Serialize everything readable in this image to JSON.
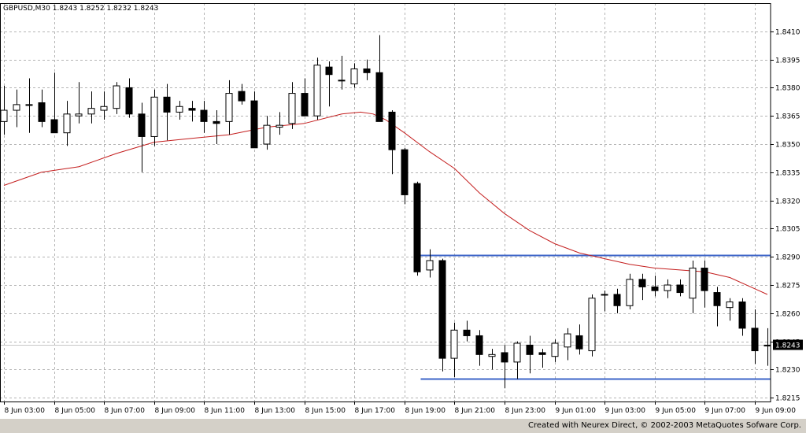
{
  "chart_data": {
    "type": "candlestick",
    "title": "GBPUSD,M30  1.8243 1.8252 1.8232 1.8243",
    "ylim": [
      1.8213,
      1.8425
    ],
    "y_ticks": [
      "1.8410",
      "1.8395",
      "1.8380",
      "1.8365",
      "1.8350",
      "1.8335",
      "1.8320",
      "1.8305",
      "1.8290",
      "1.8275",
      "1.8260",
      "1.8245",
      "1.8230",
      "1.8215"
    ],
    "x_labels": [
      "8 Jun 03:00",
      "8 Jun 05:00",
      "8 Jun 07:00",
      "8 Jun 09:00",
      "8 Jun 11:00",
      "8 Jun 13:00",
      "8 Jun 15:00",
      "8 Jun 17:00",
      "8 Jun 19:00",
      "8 Jun 21:00",
      "8 Jun 23:00",
      "9 Jun 01:00",
      "9 Jun 03:00",
      "9 Jun 05:00",
      "9 Jun 07:00",
      "9 Jun 09:00"
    ],
    "current_price": "1.8243",
    "levels": [
      1.8291,
      1.8225
    ],
    "candles": [
      {
        "o": 1.8362,
        "h": 1.8381,
        "l": 1.8355,
        "c": 1.8368
      },
      {
        "o": 1.8368,
        "h": 1.8379,
        "l": 1.8359,
        "c": 1.8371
      },
      {
        "o": 1.8371,
        "h": 1.8385,
        "l": 1.8356,
        "c": 1.8371
      },
      {
        "o": 1.8372,
        "h": 1.8379,
        "l": 1.8359,
        "c": 1.8362
      },
      {
        "o": 1.8363,
        "h": 1.8388,
        "l": 1.8356,
        "c": 1.8356
      },
      {
        "o": 1.8356,
        "h": 1.8373,
        "l": 1.8349,
        "c": 1.8366
      },
      {
        "o": 1.8365,
        "h": 1.8383,
        "l": 1.8361,
        "c": 1.8366
      },
      {
        "o": 1.8366,
        "h": 1.8378,
        "l": 1.8361,
        "c": 1.8369
      },
      {
        "o": 1.8368,
        "h": 1.8378,
        "l": 1.8363,
        "c": 1.837
      },
      {
        "o": 1.8369,
        "h": 1.8383,
        "l": 1.8366,
        "c": 1.8381
      },
      {
        "o": 1.838,
        "h": 1.8385,
        "l": 1.8364,
        "c": 1.8366
      },
      {
        "o": 1.8366,
        "h": 1.8372,
        "l": 1.8335,
        "c": 1.8354
      },
      {
        "o": 1.8354,
        "h": 1.8379,
        "l": 1.8349,
        "c": 1.8375
      },
      {
        "o": 1.8375,
        "h": 1.8382,
        "l": 1.8352,
        "c": 1.8367
      },
      {
        "o": 1.8367,
        "h": 1.8373,
        "l": 1.8363,
        "c": 1.837
      },
      {
        "o": 1.8369,
        "h": 1.8373,
        "l": 1.8362,
        "c": 1.8368
      },
      {
        "o": 1.8368,
        "h": 1.8373,
        "l": 1.8356,
        "c": 1.8362
      },
      {
        "o": 1.8362,
        "h": 1.8368,
        "l": 1.835,
        "c": 1.8361
      },
      {
        "o": 1.8362,
        "h": 1.8384,
        "l": 1.8355,
        "c": 1.8377
      },
      {
        "o": 1.8378,
        "h": 1.8382,
        "l": 1.8371,
        "c": 1.8373
      },
      {
        "o": 1.8373,
        "h": 1.8378,
        "l": 1.8348,
        "c": 1.8348
      },
      {
        "o": 1.835,
        "h": 1.8365,
        "l": 1.8347,
        "c": 1.836
      },
      {
        "o": 1.8359,
        "h": 1.8367,
        "l": 1.8355,
        "c": 1.836
      },
      {
        "o": 1.8361,
        "h": 1.8383,
        "l": 1.8358,
        "c": 1.8377
      },
      {
        "o": 1.8377,
        "h": 1.8385,
        "l": 1.8366,
        "c": 1.8365
      },
      {
        "o": 1.8365,
        "h": 1.8396,
        "l": 1.8363,
        "c": 1.8392
      },
      {
        "o": 1.8391,
        "h": 1.8394,
        "l": 1.837,
        "c": 1.8387
      },
      {
        "o": 1.8384,
        "h": 1.8397,
        "l": 1.8379,
        "c": 1.8384
      },
      {
        "o": 1.8382,
        "h": 1.8393,
        "l": 1.838,
        "c": 1.839
      },
      {
        "o": 1.839,
        "h": 1.8395,
        "l": 1.8384,
        "c": 1.8388
      },
      {
        "o": 1.8388,
        "h": 1.8408,
        "l": 1.8362,
        "c": 1.8362
      },
      {
        "o": 1.8367,
        "h": 1.8368,
        "l": 1.8334,
        "c": 1.8347
      },
      {
        "o": 1.8347,
        "h": 1.8348,
        "l": 1.8318,
        "c": 1.8323
      },
      {
        "o": 1.8329,
        "h": 1.833,
        "l": 1.828,
        "c": 1.8282
      },
      {
        "o": 1.8283,
        "h": 1.8294,
        "l": 1.8279,
        "c": 1.8288
      },
      {
        "o": 1.8288,
        "h": 1.8289,
        "l": 1.8229,
        "c": 1.8236
      },
      {
        "o": 1.8236,
        "h": 1.8255,
        "l": 1.8226,
        "c": 1.8251
      },
      {
        "o": 1.8251,
        "h": 1.8256,
        "l": 1.8245,
        "c": 1.8248
      },
      {
        "o": 1.8248,
        "h": 1.8251,
        "l": 1.8232,
        "c": 1.8238
      },
      {
        "o": 1.8237,
        "h": 1.8241,
        "l": 1.823,
        "c": 1.8238
      },
      {
        "o": 1.8239,
        "h": 1.8243,
        "l": 1.822,
        "c": 1.8234
      },
      {
        "o": 1.8234,
        "h": 1.8245,
        "l": 1.8225,
        "c": 1.8244
      },
      {
        "o": 1.8243,
        "h": 1.8248,
        "l": 1.8228,
        "c": 1.8238
      },
      {
        "o": 1.8239,
        "h": 1.8241,
        "l": 1.8231,
        "c": 1.8238
      },
      {
        "o": 1.8237,
        "h": 1.8246,
        "l": 1.8234,
        "c": 1.8244
      },
      {
        "o": 1.8242,
        "h": 1.8252,
        "l": 1.8235,
        "c": 1.8249
      },
      {
        "o": 1.8248,
        "h": 1.8254,
        "l": 1.8238,
        "c": 1.8241
      },
      {
        "o": 1.824,
        "h": 1.827,
        "l": 1.8237,
        "c": 1.8268
      },
      {
        "o": 1.827,
        "h": 1.8272,
        "l": 1.8261,
        "c": 1.827
      },
      {
        "o": 1.827,
        "h": 1.8273,
        "l": 1.826,
        "c": 1.8264
      },
      {
        "o": 1.8264,
        "h": 1.8281,
        "l": 1.8262,
        "c": 1.8278
      },
      {
        "o": 1.8278,
        "h": 1.8281,
        "l": 1.8267,
        "c": 1.8274
      },
      {
        "o": 1.8274,
        "h": 1.828,
        "l": 1.8269,
        "c": 1.8272
      },
      {
        "o": 1.8272,
        "h": 1.8278,
        "l": 1.8268,
        "c": 1.8275
      },
      {
        "o": 1.8275,
        "h": 1.8278,
        "l": 1.8269,
        "c": 1.8271
      },
      {
        "o": 1.8268,
        "h": 1.8288,
        "l": 1.826,
        "c": 1.8284
      },
      {
        "o": 1.8284,
        "h": 1.8288,
        "l": 1.8263,
        "c": 1.8272
      },
      {
        "o": 1.8271,
        "h": 1.8274,
        "l": 1.8253,
        "c": 1.8264
      },
      {
        "o": 1.8263,
        "h": 1.8268,
        "l": 1.8256,
        "c": 1.8266
      },
      {
        "o": 1.8266,
        "h": 1.8268,
        "l": 1.8248,
        "c": 1.8252
      },
      {
        "o": 1.8252,
        "h": 1.8262,
        "l": 1.8233,
        "c": 1.824
      },
      {
        "o": 1.8243,
        "h": 1.8252,
        "l": 1.8232,
        "c": 1.8243
      }
    ],
    "ma_points": [
      [
        0,
        1.8328
      ],
      [
        3,
        1.8335
      ],
      [
        6,
        1.8338
      ],
      [
        9,
        1.8345
      ],
      [
        12,
        1.8351
      ],
      [
        15,
        1.8353
      ],
      [
        18,
        1.8355
      ],
      [
        21,
        1.8359
      ],
      [
        24,
        1.8361
      ],
      [
        27,
        1.8366
      ],
      [
        28.5,
        1.8367
      ],
      [
        29.5,
        1.8366
      ],
      [
        30.5,
        1.8363
      ],
      [
        32,
        1.8356
      ],
      [
        34,
        1.8346
      ],
      [
        36,
        1.8337
      ],
      [
        38,
        1.8324
      ],
      [
        40,
        1.8313
      ],
      [
        42,
        1.8304
      ],
      [
        44,
        1.8297
      ],
      [
        46,
        1.8292
      ],
      [
        48,
        1.8289
      ],
      [
        50,
        1.8286
      ],
      [
        52,
        1.8284
      ],
      [
        54,
        1.8283
      ],
      [
        56,
        1.8282
      ],
      [
        58,
        1.8279
      ],
      [
        60,
        1.8273
      ],
      [
        61,
        1.827
      ]
    ],
    "colors": {
      "ma": "#c41e1e",
      "levels": "#3c64c8",
      "grid": "#b4b4b4"
    }
  },
  "footer": {
    "credit": "Created with Neurex Direct, © 2002-2003 MetaQuotes Sofware Corp."
  }
}
